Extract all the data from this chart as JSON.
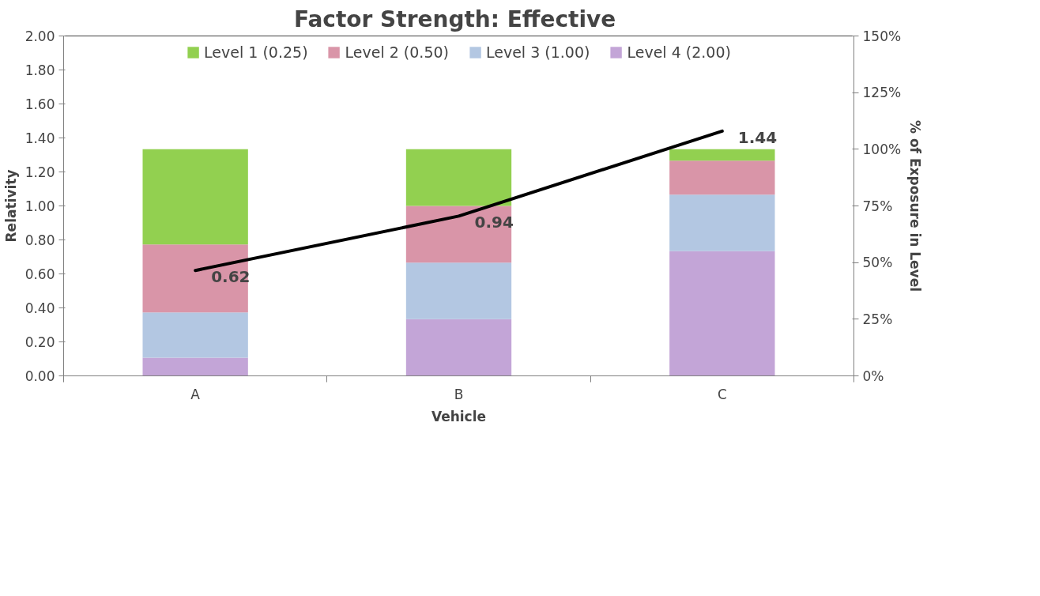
{
  "chart_data": {
    "type": "bar",
    "title": "Factor Strength:  Effective",
    "xlabel": "Vehicle",
    "ylabel": "Relativity",
    "y2label": "% of Exposure in Level",
    "categories": [
      "A",
      "B",
      "C"
    ],
    "stacked": true,
    "series": [
      {
        "name": "Level 4 (2.00)",
        "color": "#c3a5d7",
        "values": [
          8,
          25,
          55
        ],
        "axis": "y2"
      },
      {
        "name": "Level 3 (1.00)",
        "color": "#b3c7e2",
        "values": [
          20,
          25,
          25
        ],
        "axis": "y2"
      },
      {
        "name": "Level 2 (0.50)",
        "color": "#d995a8",
        "values": [
          30,
          25,
          15
        ],
        "axis": "y2"
      },
      {
        "name": "Level 1 (0.25)",
        "color": "#92d050",
        "values": [
          42,
          25,
          5
        ],
        "axis": "y2"
      },
      {
        "type": "line",
        "color": "#000000",
        "values": [
          0.62,
          0.94,
          1.44
        ],
        "value_labels": [
          "0.62",
          "0.94",
          "1.44"
        ]
      }
    ],
    "ylim": [
      0,
      2
    ],
    "yticks": [
      {
        "value": 0,
        "label": "0.00"
      },
      {
        "value": 0.2,
        "label": "0.20"
      },
      {
        "value": 0.4,
        "label": "0.40"
      },
      {
        "value": 0.6,
        "label": "0.60"
      },
      {
        "value": 0.8,
        "label": "0.80"
      },
      {
        "value": 1,
        "label": "1.00"
      },
      {
        "value": 1.2,
        "label": "1.20"
      },
      {
        "value": 1.4,
        "label": "1.40"
      },
      {
        "value": 1.6,
        "label": "1.60"
      },
      {
        "value": 1.8,
        "label": "1.80"
      },
      {
        "value": 2,
        "label": "2.00"
      }
    ],
    "y2lim": [
      0,
      150
    ],
    "y2ticks": [
      {
        "value": 0,
        "label": "0%"
      },
      {
        "value": 25,
        "label": "25%"
      },
      {
        "value": 50,
        "label": "50%"
      },
      {
        "value": 75,
        "label": "75%"
      },
      {
        "value": 100,
        "label": "100%"
      },
      {
        "value": 125,
        "label": "125%"
      },
      {
        "value": 150,
        "label": "150%"
      }
    ],
    "legend": "top",
    "grid": false,
    "marker": "none",
    "line_style": "solid"
  }
}
